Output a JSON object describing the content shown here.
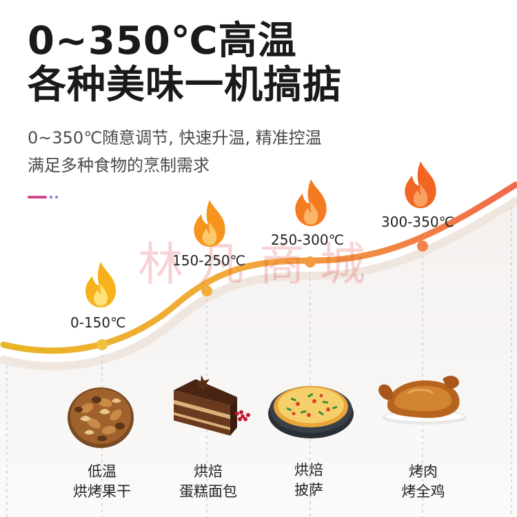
{
  "headline": {
    "line1": "0~350℃高温",
    "line2": "各种美味一机搞掂"
  },
  "subtitle": {
    "line1": "0~350℃随意调节, 快速升温, 精准控温",
    "line2": "满足多种食物的烹制需求"
  },
  "watermark": "林凡商城",
  "temperature_stages": [
    {
      "range": "0-150℃",
      "food_line1": "低温",
      "food_line2": "烘烤果干",
      "food": "mixed-nuts",
      "flame_color": "#f7b21b"
    },
    {
      "range": "150-250℃",
      "food_line1": "烘焙",
      "food_line2": "蛋糕面包",
      "food": "chocolate-cake",
      "flame_color": "#f7941d"
    },
    {
      "range": "250-300℃",
      "food_line1": "烘焙",
      "food_line2": "披萨",
      "food": "pizza",
      "flame_color": "#f47b20"
    },
    {
      "range": "300-350℃",
      "food_line1": "烤肉",
      "food_line2": "烤全鸡",
      "food": "roast-chicken",
      "flame_color": "#f26522"
    }
  ],
  "colors": {
    "curve_start": "#f2c230",
    "curve_end": "#f0704a",
    "accent_dash": "#d2468c",
    "dots": "#8a7ad0"
  }
}
